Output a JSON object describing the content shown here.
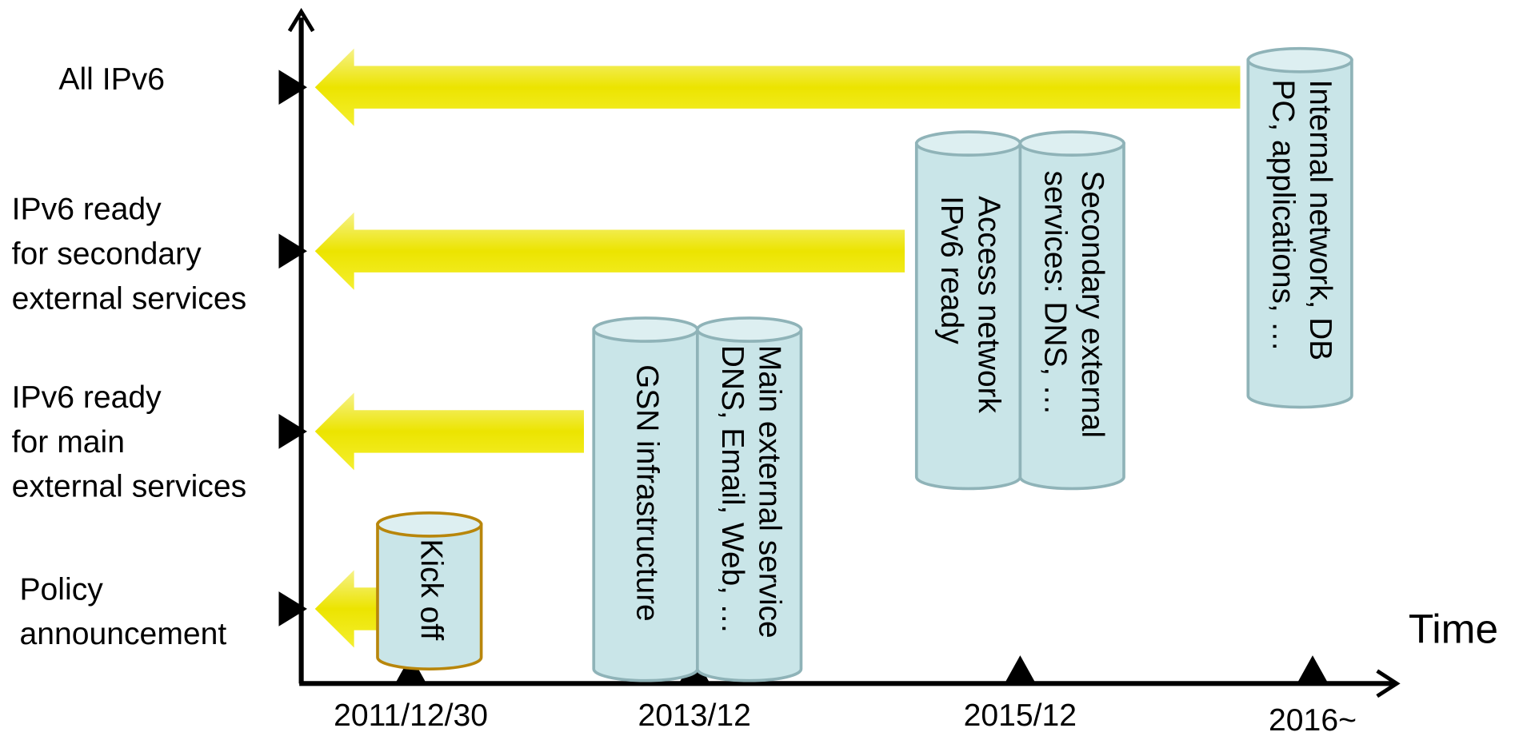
{
  "levels": [
    {
      "lines": [
        "All IPv6"
      ]
    },
    {
      "lines": [
        "IPv6 ready",
        "for secondary",
        "external services"
      ]
    },
    {
      "lines": [
        "IPv6 ready",
        "for main",
        "external services"
      ]
    },
    {
      "lines": [
        "Policy",
        "announcement"
      ]
    }
  ],
  "dates": [
    "2011/12/30",
    "2013/12",
    "2015/12",
    "2016~"
  ],
  "axis_label": "Time",
  "cylinders": [
    {
      "lines": [
        "Kick off"
      ]
    },
    {
      "lines": [
        "GSN infrastructure"
      ]
    },
    {
      "lines": [
        "Main external service",
        "DNS, Email, Web, …"
      ]
    },
    {
      "lines": [
        "Access network",
        "IPv6  ready"
      ]
    },
    {
      "lines": [
        "Secondary external",
        "services: DNS, …"
      ]
    },
    {
      "lines": [
        "Internal network, DB",
        "PC, applications, …"
      ]
    }
  ]
}
